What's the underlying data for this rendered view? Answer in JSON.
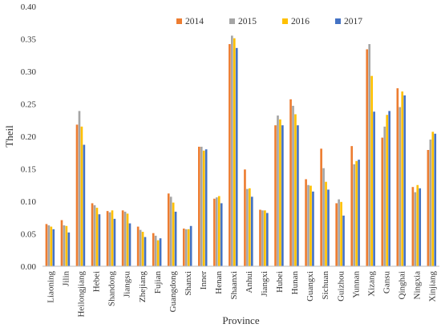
{
  "chart_data": {
    "type": "bar",
    "xlabel": "Province",
    "ylabel": "Theil",
    "ylim": [
      0,
      0.4
    ],
    "yticks": [
      "0.00",
      "0.05",
      "0.10",
      "0.15",
      "0.20",
      "0.25",
      "0.30",
      "0.35",
      "0.40"
    ],
    "grid": false,
    "legend_position": "top-right",
    "categories": [
      "Liaoning",
      "Jilin",
      "Heilongjiang",
      "Hebei",
      "Shandong",
      "Jiangsu",
      "Zhejiang",
      "Fujian",
      "Guangdong",
      "Shanxi",
      "Inner",
      "Henan",
      "Shaanxi",
      "Anhui",
      "Jiangxi",
      "Hubei",
      "Hunan",
      "Guangxi",
      "Sichuan",
      "Guizhou",
      "Yunnan",
      "Xizang",
      "Gansu",
      "Qinghai",
      "Ningxia",
      "Xinjiang"
    ],
    "series": [
      {
        "name": "2014",
        "color": "#ED7D31",
        "values": [
          0.065,
          0.071,
          0.218,
          0.097,
          0.085,
          0.086,
          0.061,
          0.051,
          0.112,
          0.058,
          0.184,
          0.104,
          0.342,
          0.149,
          0.087,
          0.217,
          0.257,
          0.134,
          0.181,
          0.097,
          0.185,
          0.334,
          0.198,
          0.274,
          0.122,
          0.179
        ]
      },
      {
        "name": "2015",
        "color": "#A5A5A5",
        "values": [
          0.063,
          0.063,
          0.239,
          0.094,
          0.083,
          0.084,
          0.056,
          0.047,
          0.107,
          0.057,
          0.184,
          0.106,
          0.355,
          0.119,
          0.086,
          0.232,
          0.247,
          0.125,
          0.151,
          0.103,
          0.157,
          0.342,
          0.215,
          0.245,
          0.114,
          0.195
        ]
      },
      {
        "name": "2016",
        "color": "#FFC000",
        "values": [
          0.061,
          0.062,
          0.215,
          0.09,
          0.086,
          0.081,
          0.053,
          0.04,
          0.098,
          0.057,
          0.178,
          0.108,
          0.351,
          0.12,
          0.086,
          0.226,
          0.234,
          0.124,
          0.13,
          0.099,
          0.162,
          0.293,
          0.233,
          0.269,
          0.125,
          0.207
        ]
      },
      {
        "name": "2017",
        "color": "#4472C4",
        "values": [
          0.057,
          0.052,
          0.187,
          0.08,
          0.073,
          0.066,
          0.045,
          0.043,
          0.084,
          0.062,
          0.18,
          0.097,
          0.336,
          0.107,
          0.082,
          0.217,
          0.217,
          0.115,
          0.118,
          0.078,
          0.164,
          0.238,
          0.239,
          0.263,
          0.12,
          0.204
        ]
      }
    ]
  }
}
